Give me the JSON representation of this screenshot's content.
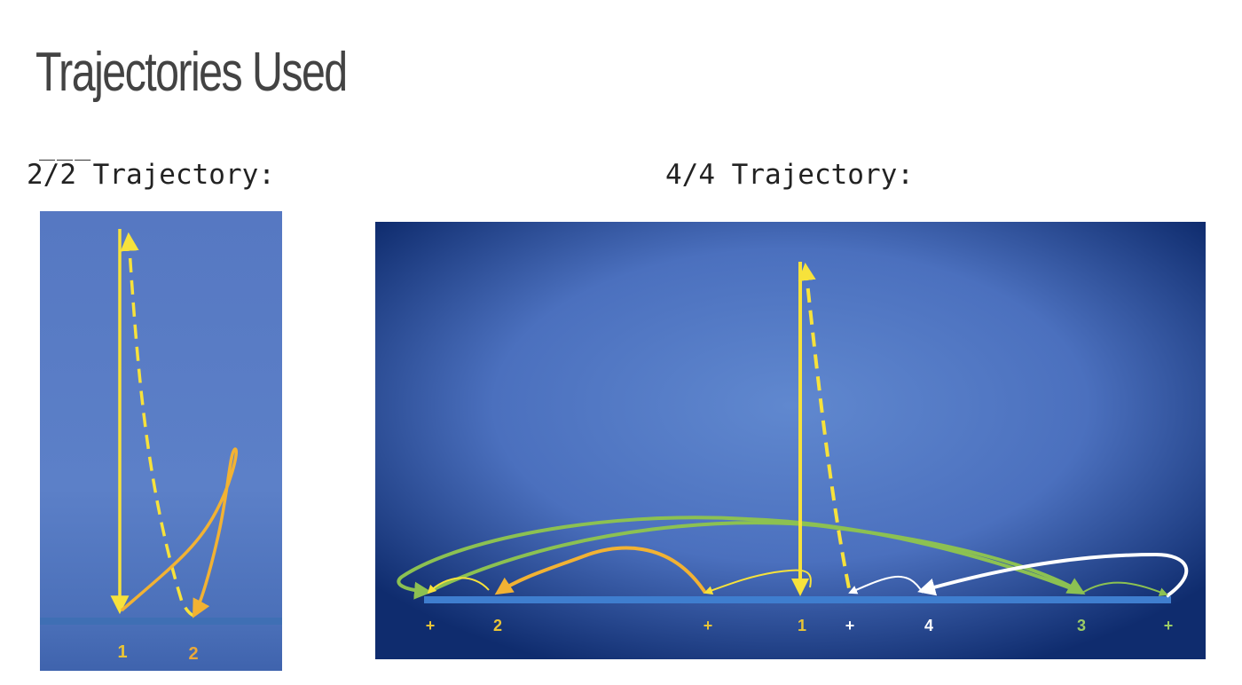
{
  "slide": {
    "title": "Trajectories Used",
    "rule": "___"
  },
  "panel_left": {
    "caption": "2/2 Trajectory:",
    "labels": [
      "1",
      "2"
    ]
  },
  "panel_right": {
    "caption": "4/4 Trajectory:",
    "labels": [
      "+",
      "2",
      "+",
      "1",
      "+",
      "4",
      "3",
      "+"
    ]
  },
  "colors": {
    "background_dark": "#0e2a6e",
    "background_light": "#5f86cf",
    "baseline": "#3f7ecf",
    "yellow": "#f7e23b",
    "orange": "#f2b233",
    "green": "#8cc152",
    "white": "#ffffff"
  }
}
